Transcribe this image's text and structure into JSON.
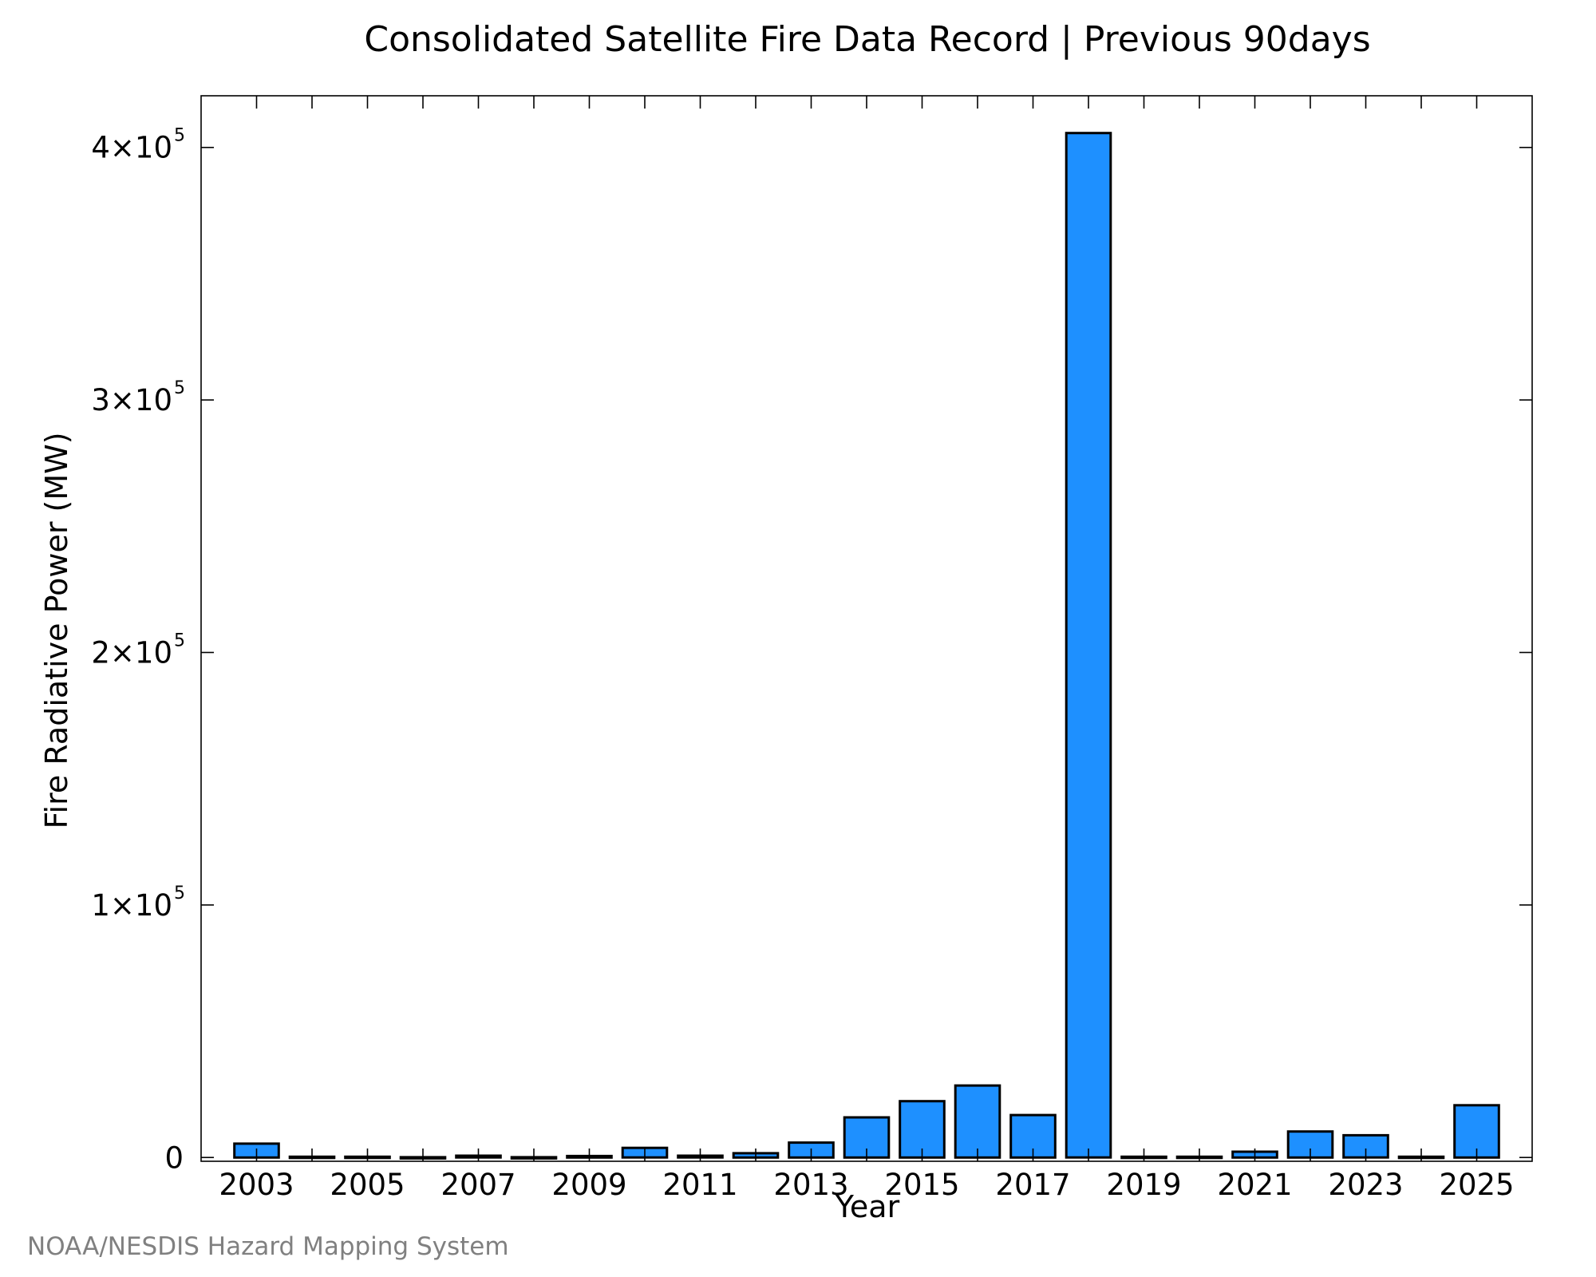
{
  "title": "Consolidated Satellite Fire Data Record | Previous 90days",
  "credit": "NOAA/NESDIS Hazard Mapping System",
  "colors": {
    "bar_fill": "#1e90ff",
    "bar_stroke": "#000000",
    "axis": "#000000",
    "credit": "#808080"
  },
  "chart_data": {
    "type": "bar",
    "title": "Consolidated Satellite Fire Data Record | Previous 90days",
    "xlabel": "Year",
    "ylabel": "Fire Radiative Power (MW)",
    "ylim": [
      -1500,
      400000
    ],
    "yticks": [
      {
        "value": 0,
        "mantissa": "0",
        "exp": ""
      },
      {
        "value": 100000,
        "mantissa": "1×10",
        "exp": "5"
      },
      {
        "value": 200000,
        "mantissa": "2×10",
        "exp": "5"
      },
      {
        "value": 300000,
        "mantissa": "3×10",
        "exp": "5"
      },
      {
        "value": 400000,
        "mantissa": "4×10",
        "exp": "5"
      }
    ],
    "x_tick_labels": [
      "2003",
      "2005",
      "2007",
      "2009",
      "2011",
      "2013",
      "2015",
      "2017",
      "2019",
      "2021",
      "2023",
      "2025"
    ],
    "grid": false,
    "legend": "none",
    "categories": [
      "2003",
      "2004",
      "2005",
      "2006",
      "2007",
      "2008",
      "2009",
      "2010",
      "2011",
      "2012",
      "2013",
      "2014",
      "2015",
      "2016",
      "2017",
      "2018",
      "2019",
      "2020",
      "2021",
      "2022",
      "2023",
      "2024",
      "2025"
    ],
    "values": [
      5500,
      300,
      300,
      100,
      700,
      100,
      600,
      3800,
      700,
      1700,
      5900,
      15900,
      22300,
      28500,
      16800,
      405700,
      300,
      300,
      2300,
      10300,
      8800,
      300,
      20700
    ]
  }
}
